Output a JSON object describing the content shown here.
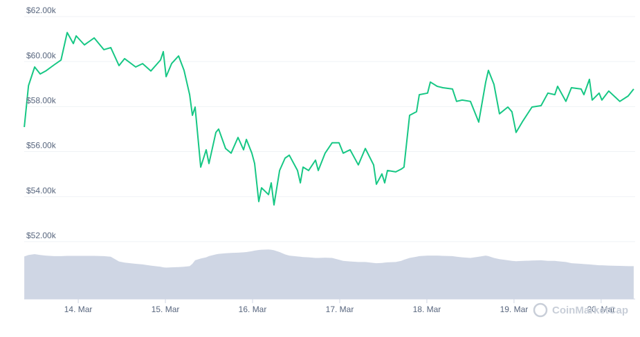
{
  "chart_data": {
    "type": "line",
    "x": [
      13.381,
      13.429,
      13.5,
      13.563,
      13.627,
      13.722,
      13.802,
      13.873,
      13.944,
      13.976,
      14.071,
      14.183,
      14.294,
      14.373,
      14.468,
      14.532,
      14.659,
      14.738,
      14.833,
      14.944,
      14.976,
      15.008,
      15.071,
      15.151,
      15.214,
      15.278,
      15.31,
      15.341,
      15.405,
      15.468,
      15.5,
      15.579,
      15.611,
      15.69,
      15.754,
      15.833,
      15.897,
      15.929,
      15.992,
      16.024,
      16.071,
      16.103,
      16.183,
      16.214,
      16.246,
      16.31,
      16.373,
      16.421,
      16.516,
      16.548,
      16.579,
      16.643,
      16.722,
      16.754,
      16.833,
      16.913,
      16.992,
      17.04,
      17.119,
      17.214,
      17.294,
      17.389,
      17.421,
      17.484,
      17.516,
      17.548,
      17.643,
      17.706,
      17.738,
      17.802,
      17.881,
      17.913,
      18.008,
      18.04,
      18.119,
      18.183,
      18.294,
      18.341,
      18.405,
      18.5,
      18.595,
      18.675,
      18.706,
      18.77,
      18.833,
      18.929,
      18.976,
      19.024,
      19.103,
      19.206,
      19.31,
      19.389,
      19.468,
      19.5,
      19.595,
      19.659,
      19.77,
      19.802,
      19.865,
      19.897,
      19.976,
      20.008,
      20.087,
      20.214,
      20.31,
      20.373
    ],
    "series": [
      {
        "color": "#16c784",
        "values": [
          57090,
          58930,
          59760,
          59450,
          59580,
          59850,
          60070,
          61290,
          60800,
          61140,
          60740,
          61050,
          60530,
          60620,
          59820,
          60130,
          59760,
          59910,
          59580,
          60070,
          60440,
          59330,
          59910,
          60250,
          59610,
          58530,
          57610,
          57980,
          55310,
          56080,
          55470,
          56850,
          57000,
          56140,
          55930,
          56630,
          56080,
          56540,
          55930,
          55470,
          53780,
          54390,
          54090,
          54610,
          53630,
          55160,
          55710,
          55840,
          55160,
          54610,
          55310,
          55160,
          55620,
          55160,
          55930,
          56390,
          56390,
          55930,
          56080,
          55410,
          56140,
          55410,
          54550,
          55010,
          54610,
          55160,
          55100,
          55220,
          55310,
          57610,
          57770,
          58530,
          58600,
          59090,
          58900,
          58840,
          58780,
          58230,
          58290,
          58230,
          57310,
          59090,
          59610,
          58990,
          57680,
          57980,
          57770,
          56850,
          57370,
          57980,
          58040,
          58600,
          58530,
          58900,
          58230,
          58840,
          58780,
          58530,
          59210,
          58290,
          58600,
          58290,
          58690,
          58230,
          58470,
          58780
        ]
      },
      {
        "color": "#cfd6e4",
        "axis": "y2",
        "values": [
          14.5,
          15.0,
          15.3,
          15.0,
          14.8,
          14.6,
          14.6,
          14.7,
          14.7,
          14.7,
          14.7,
          14.7,
          14.6,
          14.4,
          12.8,
          12.4,
          12.0,
          11.8,
          11.4,
          11.0,
          10.8,
          10.7,
          10.8,
          10.9,
          11.0,
          11.2,
          12.0,
          13.2,
          13.8,
          14.2,
          14.6,
          15.2,
          15.4,
          15.6,
          15.7,
          15.8,
          15.9,
          16.0,
          16.3,
          16.5,
          16.7,
          16.8,
          16.9,
          16.8,
          16.6,
          16.0,
          15.2,
          14.8,
          14.5,
          14.4,
          14.3,
          14.2,
          14.0,
          14.0,
          14.1,
          14.0,
          13.4,
          13.0,
          12.8,
          12.6,
          12.6,
          12.3,
          12.2,
          12.3,
          12.4,
          12.5,
          12.6,
          13.0,
          13.4,
          14.0,
          14.4,
          14.6,
          14.8,
          14.8,
          14.8,
          14.7,
          14.6,
          14.4,
          14.2,
          14.0,
          14.4,
          14.8,
          14.6,
          14.0,
          13.6,
          13.2,
          13.0,
          12.9,
          13.0,
          13.1,
          13.2,
          13.0,
          13.0,
          12.9,
          12.6,
          12.2,
          12.0,
          11.9,
          11.8,
          11.7,
          11.5,
          11.5,
          11.4,
          11.3,
          11.2,
          11.2
        ]
      }
    ],
    "xlim": [
      13.38,
      20.39
    ],
    "xticks": [
      {
        "value": 14,
        "label": "14. Mar"
      },
      {
        "value": 15,
        "label": "15. Mar"
      },
      {
        "value": 16,
        "label": "16. Mar"
      },
      {
        "value": 17,
        "label": "17. Mar"
      },
      {
        "value": 18,
        "label": "18. Mar"
      },
      {
        "value": 19,
        "label": "19. Mar"
      },
      {
        "value": 20,
        "label": "20. Mar"
      }
    ],
    "ylim": [
      49450,
      62490
    ],
    "yticks": [
      {
        "value": 52000,
        "label": "$52.00k"
      },
      {
        "value": 54000,
        "label": "$54.00k"
      },
      {
        "value": 56000,
        "label": "$56.00k"
      },
      {
        "value": 58000,
        "label": "$58.00k"
      },
      {
        "value": 60000,
        "label": "$60.00k"
      },
      {
        "value": 62000,
        "label": "$62.00k"
      }
    ],
    "y2lim": [
      0,
      100
    ],
    "grid": true,
    "watermark": "CoinMarketCap"
  }
}
